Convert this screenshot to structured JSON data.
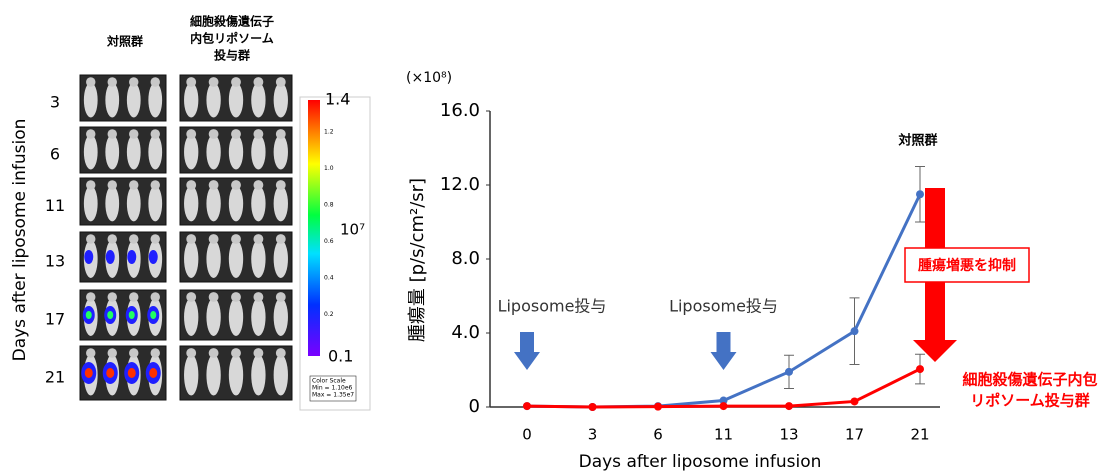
{
  "image_panel": {
    "axis_label": "Days after liposome infusion",
    "column_headers": [
      "対照群",
      [
        "細胞殺傷遺伝子",
        "内包リポソーム",
        "投与群"
      ]
    ],
    "rows": [
      "3",
      "6",
      "11",
      "13",
      "17",
      "21"
    ],
    "colorbar": {
      "max_label": "1.4",
      "min_label": "0.1",
      "unit": "10⁷",
      "minor_labels": [
        "1.2",
        "1.0",
        "0.8",
        "0.6",
        "0.4",
        "0.2"
      ],
      "note": [
        "Color Scale",
        "Min = 1.10e6",
        "Max = 1.35e7"
      ]
    }
  },
  "chart_data": {
    "type": "line",
    "multiplier": "(×10⁸)",
    "y_label": "腫瘍量 [p/s/cm²/sr]",
    "x_label": "Days after liposome infusion",
    "categories": [
      "0",
      "3",
      "6",
      "11",
      "13",
      "17",
      "21"
    ],
    "series": [
      {
        "name": "対照群",
        "color": "#4472c4",
        "values": [
          0.05,
          0,
          0.05,
          0.35,
          1.9,
          4.1,
          11.5
        ],
        "errors": [
          null,
          null,
          null,
          null,
          0.9,
          1.8,
          1.5
        ]
      },
      {
        "label_lines": [
          "細胞殺傷遺伝子内包",
          "リポソーム投与群"
        ],
        "color": "#ff0000",
        "values": [
          0.05,
          0,
          0.02,
          0.05,
          0.05,
          0.3,
          2.05
        ],
        "errors": [
          null,
          null,
          null,
          null,
          null,
          null,
          0.8
        ]
      }
    ],
    "ylim": [
      0,
      16
    ],
    "yticks": [
      0,
      {
        "value": 4,
        "label": "4.0"
      },
      {
        "value": 8,
        "label": "8.0"
      },
      {
        "value": 12,
        "label": "12.0"
      },
      {
        "value": 16,
        "label": "16.0"
      }
    ],
    "annotations": {
      "suppression": "腫瘍増悪を抑制",
      "dosing": [
        "Liposome投与",
        "Liposome投与"
      ]
    }
  }
}
